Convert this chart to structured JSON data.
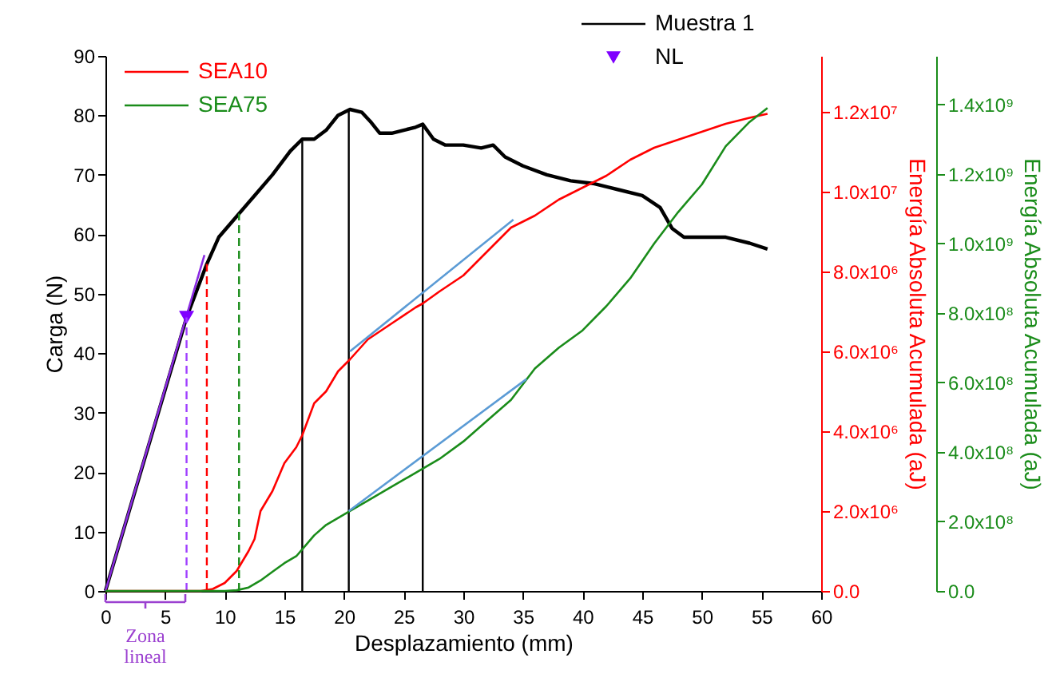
{
  "chart_data": {
    "type": "line",
    "xlabel": "Desplazamiento (mm)",
    "ylabel": "Carga (N)",
    "y2label": "Energía Absoluta Acumulada (aJ)",
    "y3label": "Energía Absoluta Acumulada (aJ)",
    "xlim": [
      0,
      60
    ],
    "xticks": [
      0,
      5,
      10,
      15,
      20,
      25,
      30,
      35,
      40,
      45,
      50,
      55,
      60
    ],
    "ylim": [
      0,
      90
    ],
    "yticks": [
      0,
      10,
      20,
      30,
      40,
      50,
      60,
      70,
      80,
      90
    ],
    "y2lim": [
      0,
      13400000
    ],
    "y2ticks": [
      {
        "value": 0,
        "label": "0.0"
      },
      {
        "value": 2000000,
        "label": "2.0x10⁶"
      },
      {
        "value": 4000000,
        "label": "4.0x10⁶"
      },
      {
        "value": 6000000,
        "label": "6.0x10⁶"
      },
      {
        "value": 8000000,
        "label": "8.0x10⁶"
      },
      {
        "value": 10000000,
        "label": "1.0x10⁷"
      },
      {
        "value": 12000000,
        "label": "1.2x10⁷"
      }
    ],
    "y3lim": [
      0,
      1540000000
    ],
    "y3ticks": [
      {
        "value": 0,
        "label": "0.0"
      },
      {
        "value": 200000000,
        "label": "2.0x10⁸"
      },
      {
        "value": 400000000,
        "label": "4.0x10⁸"
      },
      {
        "value": 600000000,
        "label": "6.0x10⁸"
      },
      {
        "value": 800000000,
        "label": "8.0x10⁸"
      },
      {
        "value": 1000000000,
        "label": "1.0x10⁹"
      },
      {
        "value": 1200000000,
        "label": "1.2x10⁹"
      },
      {
        "value": 1400000000,
        "label": "1.4x10⁹"
      }
    ],
    "grid": false,
    "legend": "top left",
    "series": [
      {
        "name": "Muestra 1",
        "color": "#000000",
        "axis": "y",
        "x": [
          0,
          6.8,
          8.5,
          9.5,
          11,
          12.5,
          14,
          15.5,
          16.5,
          17.5,
          18.5,
          19.5,
          20.5,
          21.5,
          22.2,
          23,
          24,
          25,
          26,
          26.6,
          27.5,
          28.5,
          30,
          31.5,
          32.5,
          33.5,
          35,
          37,
          39,
          41,
          43,
          45,
          46.5,
          47.5,
          48.5,
          50,
          52,
          54,
          55.5
        ],
        "values": [
          0,
          46,
          55,
          59.5,
          63,
          66.5,
          70,
          74,
          76,
          76,
          77.5,
          80,
          81,
          80.5,
          79,
          77,
          77,
          77.5,
          78,
          78.5,
          76,
          75,
          75,
          74.5,
          75,
          73,
          71.5,
          70,
          69,
          68.5,
          67.5,
          66.5,
          64.5,
          61,
          59.5,
          59.5,
          59.5,
          58.5,
          57.5
        ]
      },
      {
        "color": "#8a2be2",
        "axis": "y",
        "x": [
          0,
          8.3
        ],
        "values": [
          0,
          56.5
        ]
      },
      {
        "name": "NL",
        "type": "scatter",
        "marker": "triangle",
        "color": "#7f00ff",
        "axis": "y",
        "x": [
          6.8
        ],
        "values": [
          46
        ]
      },
      {
        "name": "SEA10",
        "color": "#ff0000",
        "axis": "y2",
        "x": [
          0,
          8,
          9,
          10,
          11,
          12,
          12.5,
          13,
          14,
          15,
          16,
          16.5,
          17.5,
          18.5,
          19.5,
          20.5,
          22,
          24,
          26,
          26.6,
          28,
          30,
          32,
          34,
          36,
          38,
          40,
          42,
          44,
          46,
          48,
          50,
          52,
          54,
          55.5
        ],
        "values": [
          0,
          0,
          50000,
          200000,
          500000,
          1000000,
          1300000,
          2000000,
          2500000,
          3200000,
          3600000,
          3900000,
          4700000,
          5000000,
          5500000,
          5800000,
          6300000,
          6700000,
          7100000,
          7200000,
          7500000,
          7900000,
          8500000,
          9100000,
          9400000,
          9800000,
          10100000,
          10400000,
          10800000,
          11100000,
          11300000,
          11500000,
          11700000,
          11850000,
          11950000
        ]
      },
      {
        "color": "#5b9bd5",
        "axis": "y2",
        "x": [
          20.5,
          34.2
        ],
        "values": [
          6000000,
          9300000
        ]
      },
      {
        "name": "SEA75",
        "color": "#1a8c1a",
        "axis": "y3",
        "x": [
          0,
          10,
          11,
          12,
          13,
          14,
          15,
          16,
          16.5,
          17.5,
          18.5,
          19.5,
          20.5,
          22,
          24,
          26,
          28,
          30,
          32,
          34,
          36,
          38,
          40,
          42,
          44,
          46,
          48,
          50,
          52,
          54,
          55.5
        ],
        "values": [
          0,
          0,
          2000000,
          10000000,
          30000000,
          55000000,
          80000000,
          100000000,
          120000000,
          160000000,
          190000000,
          210000000,
          230000000,
          260000000,
          300000000,
          340000000,
          380000000,
          430000000,
          490000000,
          550000000,
          640000000,
          700000000,
          750000000,
          820000000,
          900000000,
          1000000000,
          1090000000,
          1170000000,
          1280000000,
          1350000000,
          1390000000
        ]
      },
      {
        "color": "#5b9bd5",
        "axis": "y3",
        "x": [
          20.4,
          35.3
        ],
        "values": [
          230000000,
          610000000
        ]
      }
    ],
    "ref_lines": [
      {
        "axis": "x",
        "value": 6.8,
        "color": "#a040ff",
        "line_style": "dashed"
      },
      {
        "axis": "x",
        "value": 8.5,
        "color": "#ff0000",
        "line_style": "dashed"
      },
      {
        "axis": "x",
        "value": 11.2,
        "color": "#1a8c1a",
        "line_style": "dashed"
      },
      {
        "axis": "x",
        "value": 16.5,
        "color": "#000000",
        "line_style": "solid"
      },
      {
        "axis": "x",
        "value": 20.4,
        "color": "#000000",
        "line_style": "solid"
      },
      {
        "axis": "x",
        "value": 26.6,
        "color": "#000000",
        "line_style": "solid"
      }
    ],
    "annotations": [
      "Zona lineal"
    ]
  }
}
